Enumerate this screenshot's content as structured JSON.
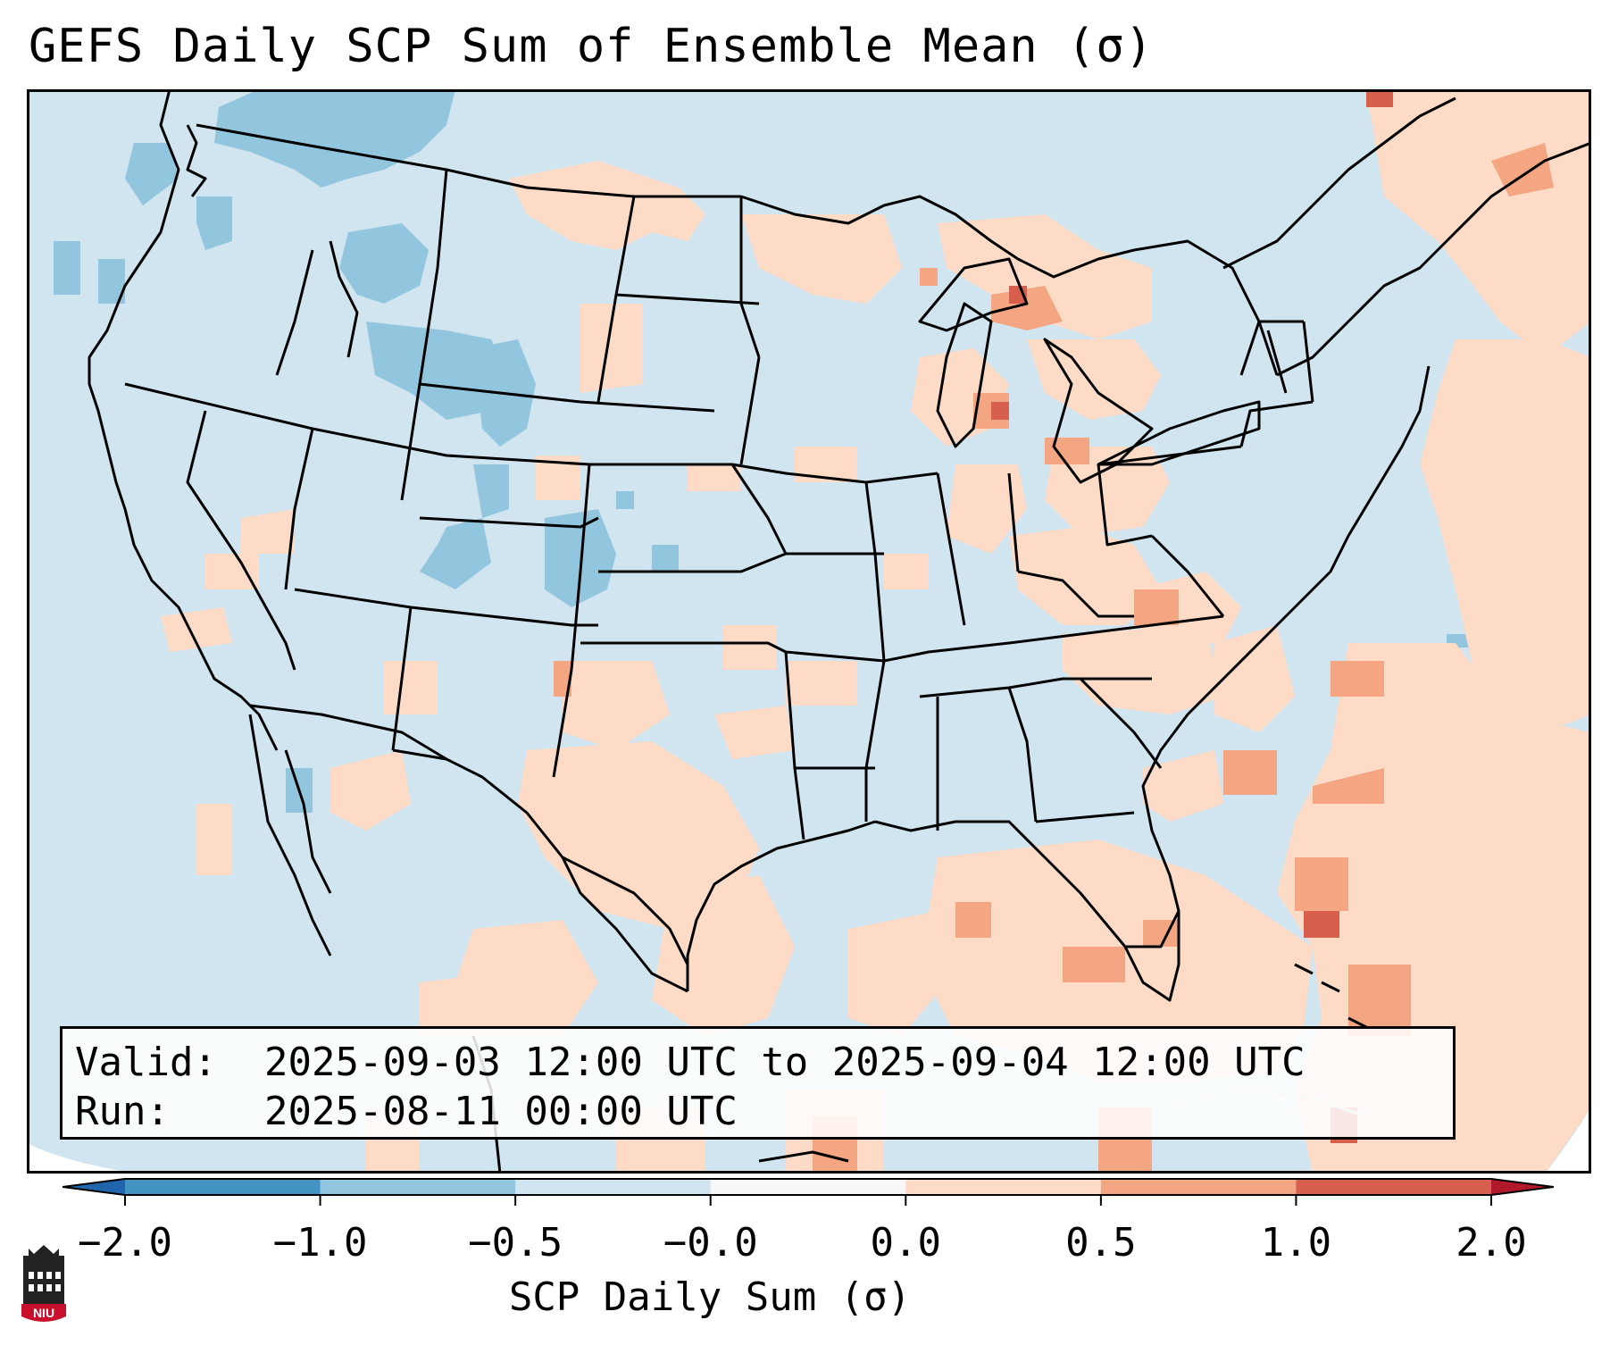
{
  "title": "GEFS Daily SCP Sum of Ensemble Mean (σ)",
  "info": {
    "valid_label": "Valid:",
    "valid_value": "2025-09-03 12:00 UTC to 2025-09-04 12:00 UTC",
    "run_label": "Run:",
    "run_value": "2025-08-11 00:00 UTC"
  },
  "colorbar": {
    "label": "SCP Daily Sum (σ)",
    "ticks": [
      "−2.0",
      "−1.0",
      "−0.5",
      "−0.0",
      "0.0",
      "0.5",
      "1.0",
      "2.0"
    ],
    "bin_colors": [
      "#4393c3",
      "#92c5de",
      "#d1e5f0",
      "#f7f7f7",
      "#fddbc7",
      "#f4a582",
      "#d6604d"
    ],
    "under_color": "#2166ac",
    "over_color": "#b2182b"
  },
  "logo": {
    "text": "NIU",
    "icon": "niu-building-logo"
  }
}
